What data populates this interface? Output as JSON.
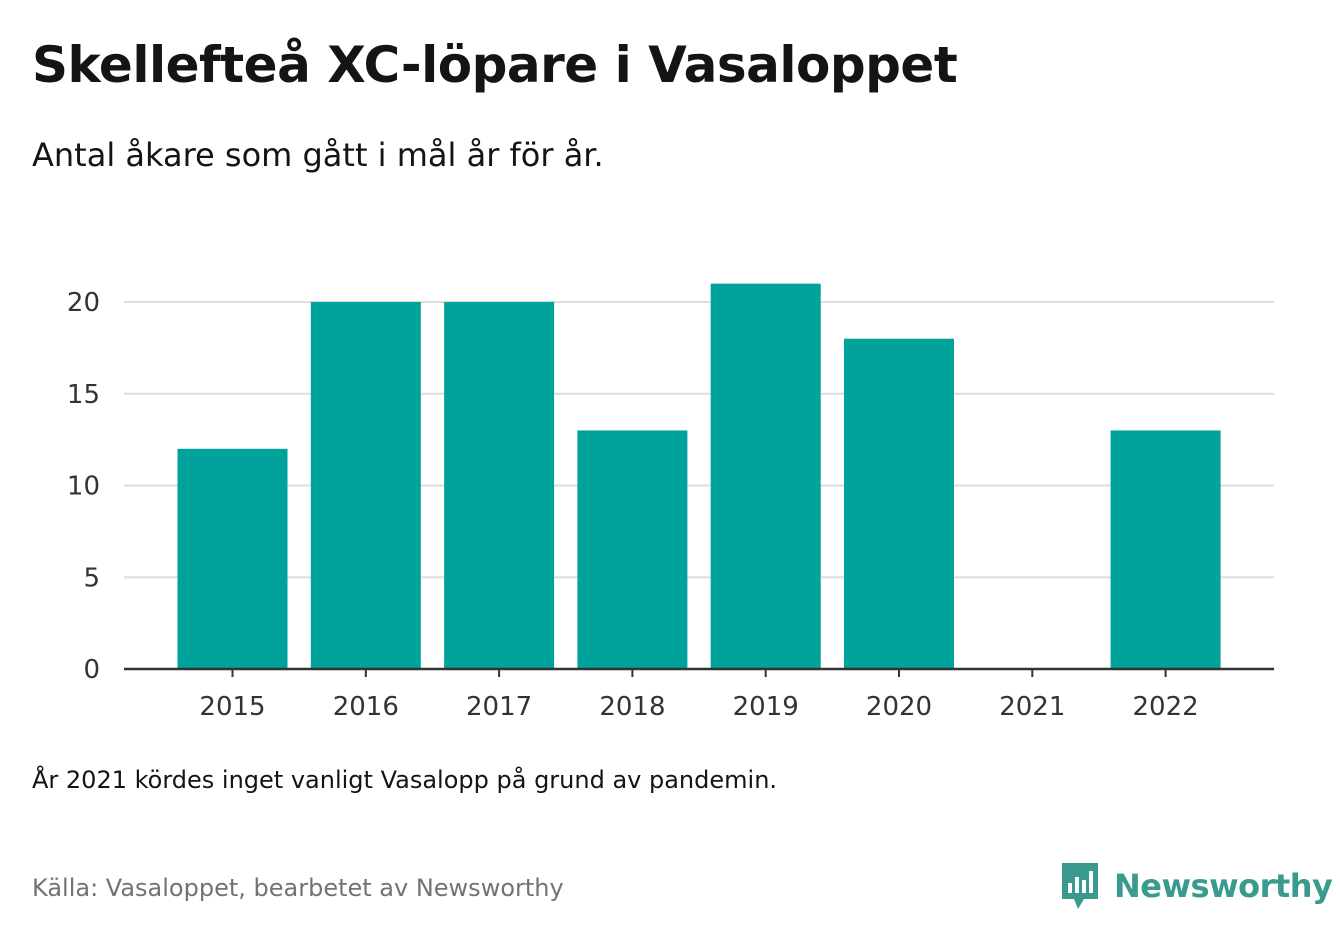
{
  "title": "Skellefteå XC-löpare i Vasaloppet",
  "subtitle": "Antal åkare som gått i mål år för år.",
  "note": "År 2021 kördes inget vanligt Vasalopp på grund av pandemin.",
  "source": "Källa: Vasaloppet, bearbetet av Newsworthy",
  "brand": {
    "name": "Newsworthy",
    "icon": "newsworthy-logo-icon",
    "color": "#3a9a8e"
  },
  "colors": {
    "bar": "#00a39b",
    "grid": "#dddddd",
    "axis": "#333333"
  },
  "chart_data": {
    "type": "bar",
    "categories": [
      "2015",
      "2016",
      "2017",
      "2018",
      "2019",
      "2020",
      "2021",
      "2022"
    ],
    "values": [
      12,
      20,
      20,
      13,
      21,
      18,
      null,
      13
    ],
    "ylim": [
      0,
      20
    ],
    "yticks": [
      0,
      5,
      10,
      15,
      20
    ],
    "grid": true,
    "xlabel": "",
    "ylabel": ""
  }
}
